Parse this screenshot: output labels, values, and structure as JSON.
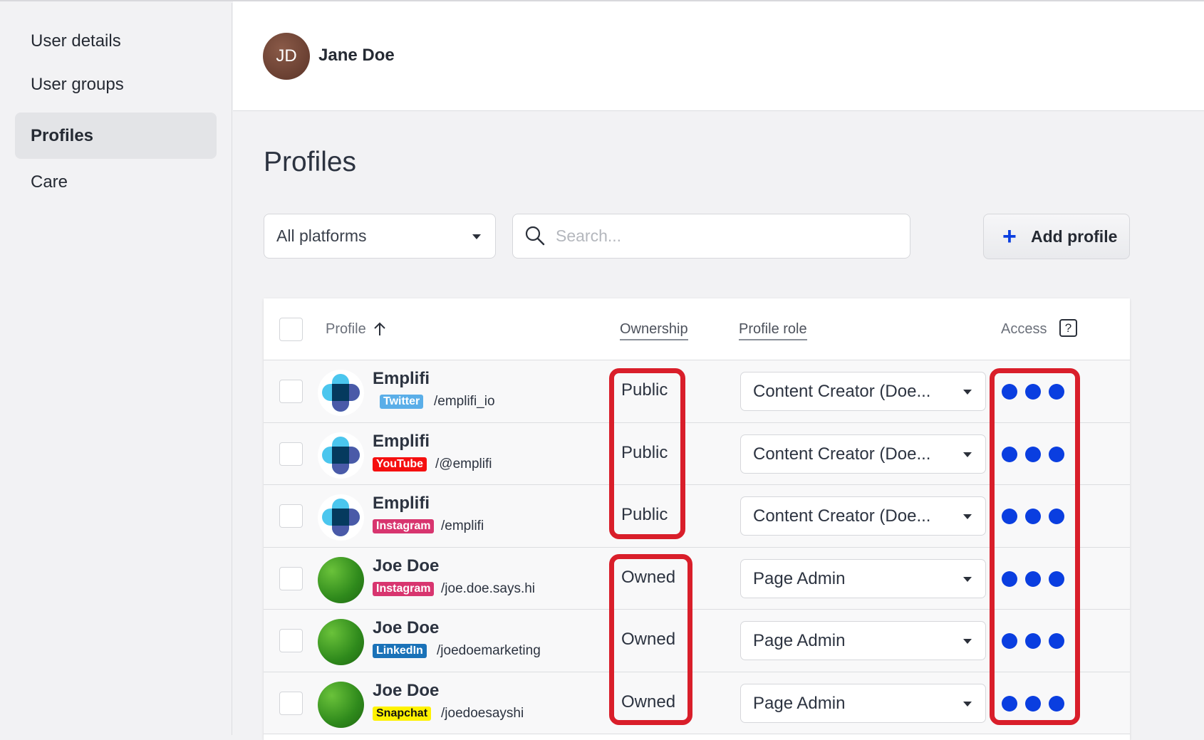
{
  "sidebar": {
    "items": [
      {
        "label": "User details"
      },
      {
        "label": "User groups"
      },
      {
        "label": "Profiles",
        "active": true
      },
      {
        "label": "Care"
      }
    ]
  },
  "header": {
    "avatar_initials": "JD",
    "user_name": "Jane Doe"
  },
  "main": {
    "title": "Profiles",
    "filters": {
      "platform_value": "All platforms",
      "search_placeholder": "Search...",
      "add_label": "Add profile"
    },
    "table": {
      "columns": {
        "profile": "Profile",
        "ownership": "Ownership",
        "role": "Profile role",
        "access": "Access"
      },
      "rows": [
        {
          "name": "Emplifi",
          "platform": "Twitter",
          "platform_color": "#5aaee8",
          "handle": "/emplifi_io",
          "ownership": "Public",
          "role": "Content Creator (Doe...",
          "avatar": "emplifi-logo"
        },
        {
          "name": "Emplifi",
          "platform": "YouTube",
          "platform_color": "#f50f0f",
          "handle": "/@emplifi",
          "ownership": "Public",
          "role": "Content Creator (Doe...",
          "avatar": "emplifi-logo"
        },
        {
          "name": "Emplifi",
          "platform": "Instagram",
          "platform_color": "#d8356f",
          "handle": "/emplifi",
          "ownership": "Public",
          "role": "Content Creator (Doe...",
          "avatar": "emplifi-logo"
        },
        {
          "name": "Joe Doe",
          "platform": "Instagram",
          "platform_color": "#d8356f",
          "handle": "/joe.doe.says.hi",
          "ownership": "Owned",
          "role": "Page Admin",
          "avatar": "moss-photo"
        },
        {
          "name": "Joe Doe",
          "platform": "LinkedIn",
          "platform_color": "#1a72b8",
          "handle": "/joedoemarketing",
          "ownership": "Owned",
          "role": "Page Admin",
          "avatar": "moss-photo"
        },
        {
          "name": "Joe Doe",
          "platform": "Snapchat",
          "platform_color": "#fff200",
          "handle": "/joedoesayshi",
          "ownership": "Owned",
          "role": "Page Admin",
          "avatar": "moss-photo"
        }
      ]
    }
  },
  "colors": {
    "accent": "#0a3ee0",
    "highlight": "#d91e2a"
  }
}
